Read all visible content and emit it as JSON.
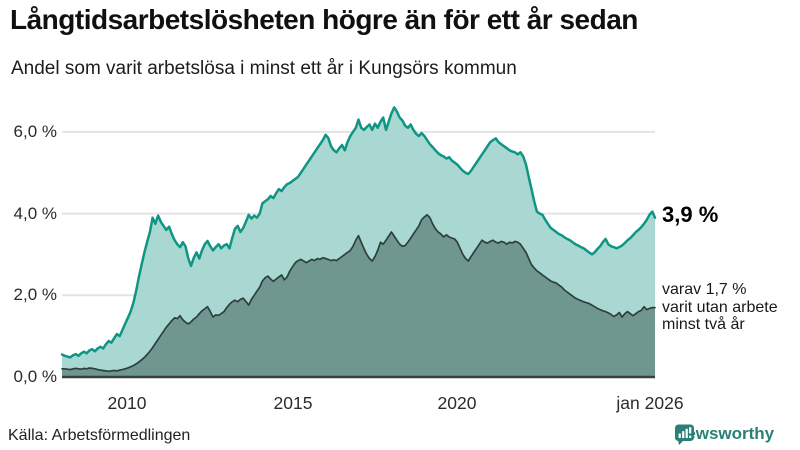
{
  "header": {
    "title": "Långtidsarbetslösheten högre än för ett år sedan",
    "subtitle": "Andel som varit arbetslösa i minst ett år i Kungsörs kommun"
  },
  "annotations": {
    "primary": "3,9 %",
    "secondary_lines": [
      "varav 1,7 %",
      "varit utan arbete",
      "minst två år"
    ]
  },
  "footer": {
    "source": "Källa: Arbetsförmedlingen",
    "brand": "Newsworthy"
  },
  "colors": {
    "series1_fill": "#a9d8d2",
    "series1_line": "#0f9583",
    "series2_fill": "#6f968f",
    "series2_line": "#2e403c",
    "gridline": "#e3e4e8",
    "baseline": "#37423f",
    "brand_teal": "#2a8077"
  },
  "chart_data": {
    "type": "area",
    "title": "Långtidsarbetslösheten högre än för ett år sedan",
    "subtitle": "Andel som varit arbetslösa i minst ett år i Kungsörs kommun",
    "unit": "%",
    "frequency": "monthly",
    "x_start": "jan 2008",
    "x_end": "jan 2026",
    "ylim": [
      0,
      6.8
    ],
    "grid": true,
    "legend_position": "end-of-line-labels",
    "y_axis": {
      "ticks": [
        {
          "label": "6,0 %",
          "value": 6.0
        },
        {
          "label": "4,0 %",
          "value": 4.0
        },
        {
          "label": "2,0 %",
          "value": 2.0
        },
        {
          "label": "0,0 %",
          "value": 0.0
        }
      ]
    },
    "x_axis": {
      "ticks": [
        {
          "label": "2010",
          "value": 2010
        },
        {
          "label": "2015",
          "value": 2015
        },
        {
          "label": "2020",
          "value": 2020
        },
        {
          "label": "jan 2026",
          "value": 2026
        }
      ]
    },
    "series": [
      {
        "name": "Andel arbetslösa minst ett år",
        "end_label": "3,9 %",
        "values": [
          0.55,
          0.52,
          0.5,
          0.48,
          0.53,
          0.56,
          0.52,
          0.58,
          0.62,
          0.58,
          0.65,
          0.68,
          0.63,
          0.7,
          0.74,
          0.7,
          0.8,
          0.88,
          0.84,
          0.95,
          1.05,
          1.0,
          1.15,
          1.3,
          1.45,
          1.6,
          1.82,
          2.1,
          2.45,
          2.75,
          3.05,
          3.3,
          3.55,
          3.9,
          3.75,
          3.95,
          3.8,
          3.7,
          3.6,
          3.68,
          3.5,
          3.35,
          3.25,
          3.18,
          3.3,
          3.2,
          2.9,
          2.72,
          2.92,
          3.05,
          2.9,
          3.1,
          3.25,
          3.33,
          3.2,
          3.1,
          3.18,
          3.25,
          3.15,
          3.22,
          3.25,
          3.15,
          3.4,
          3.63,
          3.7,
          3.55,
          3.65,
          3.8,
          3.97,
          3.88,
          3.95,
          3.9,
          4.0,
          4.25,
          4.3,
          4.35,
          4.43,
          4.38,
          4.5,
          4.6,
          4.55,
          4.65,
          4.72,
          4.75,
          4.8,
          4.85,
          4.9,
          5.0,
          5.1,
          5.2,
          5.3,
          5.4,
          5.5,
          5.6,
          5.7,
          5.8,
          5.93,
          5.85,
          5.65,
          5.55,
          5.5,
          5.6,
          5.68,
          5.55,
          5.75,
          5.9,
          6.0,
          6.1,
          6.3,
          6.1,
          6.05,
          6.12,
          6.18,
          6.05,
          6.2,
          6.1,
          6.25,
          6.35,
          6.05,
          6.25,
          6.45,
          6.6,
          6.5,
          6.35,
          6.28,
          6.15,
          6.1,
          6.18,
          6.05,
          5.95,
          5.9,
          5.97,
          5.9,
          5.8,
          5.7,
          5.63,
          5.55,
          5.48,
          5.43,
          5.4,
          5.35,
          5.38,
          5.3,
          5.25,
          5.2,
          5.12,
          5.05,
          5.0,
          4.97,
          5.05,
          5.15,
          5.25,
          5.35,
          5.45,
          5.55,
          5.65,
          5.75,
          5.8,
          5.84,
          5.75,
          5.7,
          5.65,
          5.6,
          5.55,
          5.52,
          5.5,
          5.45,
          5.5,
          5.4,
          5.2,
          4.9,
          4.6,
          4.3,
          4.05,
          4.0,
          3.97,
          3.85,
          3.75,
          3.65,
          3.6,
          3.55,
          3.5,
          3.47,
          3.42,
          3.38,
          3.35,
          3.3,
          3.25,
          3.22,
          3.18,
          3.15,
          3.1,
          3.05,
          3.0,
          3.05,
          3.13,
          3.2,
          3.3,
          3.38,
          3.25,
          3.2,
          3.18,
          3.15,
          3.18,
          3.22,
          3.28,
          3.35,
          3.4,
          3.47,
          3.55,
          3.6,
          3.67,
          3.75,
          3.85,
          3.97,
          4.05,
          3.9
        ]
      },
      {
        "name": "varav utan arbete minst två år",
        "end_label": "1,7 %",
        "values": [
          0.2,
          0.2,
          0.19,
          0.18,
          0.2,
          0.21,
          0.2,
          0.19,
          0.21,
          0.2,
          0.22,
          0.21,
          0.2,
          0.18,
          0.17,
          0.16,
          0.15,
          0.14,
          0.15,
          0.16,
          0.15,
          0.17,
          0.18,
          0.2,
          0.22,
          0.25,
          0.28,
          0.32,
          0.37,
          0.42,
          0.48,
          0.55,
          0.63,
          0.72,
          0.82,
          0.92,
          1.02,
          1.12,
          1.22,
          1.3,
          1.38,
          1.45,
          1.43,
          1.5,
          1.4,
          1.34,
          1.3,
          1.35,
          1.42,
          1.47,
          1.55,
          1.62,
          1.67,
          1.72,
          1.6,
          1.47,
          1.52,
          1.51,
          1.55,
          1.6,
          1.7,
          1.78,
          1.84,
          1.88,
          1.84,
          1.9,
          1.93,
          1.85,
          1.76,
          1.9,
          2.0,
          2.1,
          2.2,
          2.35,
          2.43,
          2.47,
          2.4,
          2.34,
          2.4,
          2.45,
          2.5,
          2.38,
          2.45,
          2.6,
          2.7,
          2.8,
          2.85,
          2.88,
          2.84,
          2.8,
          2.84,
          2.88,
          2.85,
          2.9,
          2.88,
          2.92,
          2.9,
          2.88,
          2.85,
          2.87,
          2.85,
          2.9,
          2.95,
          3.0,
          3.05,
          3.1,
          3.2,
          3.35,
          3.46,
          3.3,
          3.14,
          3.0,
          2.9,
          2.84,
          2.95,
          3.1,
          3.3,
          3.25,
          3.35,
          3.45,
          3.55,
          3.45,
          3.35,
          3.25,
          3.2,
          3.22,
          3.3,
          3.4,
          3.5,
          3.6,
          3.7,
          3.85,
          3.92,
          3.97,
          3.9,
          3.75,
          3.63,
          3.55,
          3.5,
          3.43,
          3.48,
          3.43,
          3.4,
          3.38,
          3.3,
          3.15,
          3.0,
          2.9,
          2.84,
          2.95,
          3.05,
          3.15,
          3.25,
          3.35,
          3.3,
          3.28,
          3.32,
          3.35,
          3.3,
          3.28,
          3.32,
          3.3,
          3.25,
          3.3,
          3.28,
          3.32,
          3.3,
          3.25,
          3.15,
          3.05,
          2.9,
          2.75,
          2.67,
          2.6,
          2.55,
          2.5,
          2.45,
          2.4,
          2.35,
          2.32,
          2.3,
          2.25,
          2.2,
          2.13,
          2.08,
          2.03,
          1.98,
          1.93,
          1.9,
          1.87,
          1.84,
          1.82,
          1.8,
          1.76,
          1.72,
          1.68,
          1.65,
          1.62,
          1.6,
          1.57,
          1.53,
          1.48,
          1.52,
          1.58,
          1.47,
          1.55,
          1.6,
          1.55,
          1.5,
          1.55,
          1.6,
          1.63,
          1.72,
          1.65,
          1.68,
          1.7,
          1.7
        ]
      }
    ]
  }
}
